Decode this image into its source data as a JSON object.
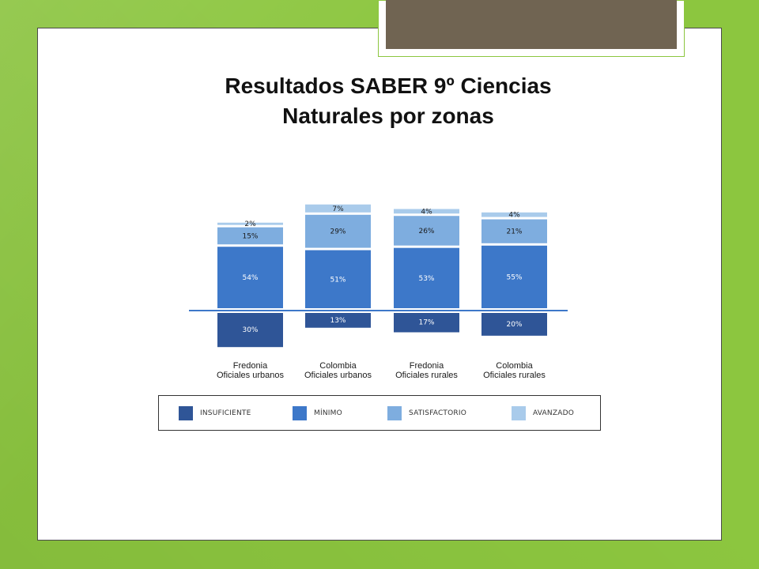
{
  "slide": {
    "title_line1": "Resultados SABER 9º Ciencias",
    "title_line2": "Naturales por zonas"
  },
  "chart_data": {
    "type": "bar",
    "stacked": true,
    "baseline_between": "INSUFICIENTE (below) and MÍNIMO (above)",
    "categories": [
      "Fredonia Oficiales urbanos",
      "Colombia Oficiales urbanos",
      "Fredonia Oficiales rurales",
      "Colombia Oficiales rurales"
    ],
    "category_lines": [
      [
        "Fredonia",
        "Oficiales urbanos"
      ],
      [
        "Colombia",
        "Oficiales urbanos"
      ],
      [
        "Fredonia",
        "Oficiales rurales"
      ],
      [
        "Colombia",
        "Oficiales rurales"
      ]
    ],
    "series": [
      {
        "name": "INSUFICIENTE",
        "values": [
          30,
          13,
          17,
          20
        ],
        "labels": [
          "30%",
          "13%",
          "17%",
          "20%"
        ],
        "color": "#2f5597"
      },
      {
        "name": "MÍNIMO",
        "values": [
          54,
          51,
          53,
          55
        ],
        "labels": [
          "54%",
          "51%",
          "53%",
          "55%"
        ],
        "color": "#3d78c9"
      },
      {
        "name": "SATISFACTORIO",
        "values": [
          15,
          29,
          26,
          21
        ],
        "labels": [
          "15%",
          "29%",
          "26%",
          "21%"
        ],
        "color": "#7eaddf"
      },
      {
        "name": "AVANZADO",
        "values": [
          2,
          7,
          4,
          4
        ],
        "labels": [
          "2%",
          "7%",
          "4%",
          "4%"
        ],
        "color": "#a9cbeb"
      }
    ],
    "legend_position": "bottom",
    "grid": false
  }
}
